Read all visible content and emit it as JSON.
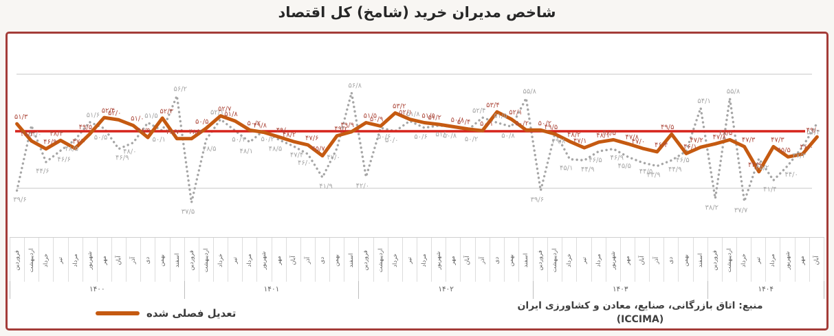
{
  "title": "شاخص مدیران خرید (شامخ) کل اقتصاد",
  "legend": {
    "label": "تعدیل فصلی شده"
  },
  "source": {
    "line1": "منبع: اتاق بازرگانی، صنایع، معادن و کشاورزی ایران",
    "line2": "(ICCIMA)"
  },
  "colors": {
    "frame_border": "#a43c38",
    "reference_line": "#d6231b",
    "adjusted_line": "#c55a11",
    "raw_line": "#a6a6a6",
    "adjusted_label": "#ad4a3d",
    "raw_label": "#a6a6a6",
    "gridline": "#d9d9d9"
  },
  "chart_data": {
    "type": "line",
    "title": "شاخص مدیران خرید (شامخ) کل اقتصاد",
    "reference_line": 50,
    "gridlines": [
      40,
      60
    ],
    "ylim": [
      34,
      62
    ],
    "legend_position": "bottom-left",
    "numeral_style": "persian",
    "month_names": [
      "فروردین",
      "اردیبهشت",
      "خرداد",
      "تیر",
      "مرداد",
      "شهریور",
      "مهر",
      "آبان",
      "آذر",
      "دی",
      "بهمن",
      "اسفند"
    ],
    "years": [
      {
        "label": "۱۴۰۰",
        "n_months": 12
      },
      {
        "label": "۱۴۰۱",
        "n_months": 12
      },
      {
        "label": "۱۴۰۲",
        "n_months": 12
      },
      {
        "label": "۱۴۰۳",
        "n_months": 12
      },
      {
        "label": "۱۴۰۴",
        "n_months": 8
      }
    ],
    "series": [
      {
        "id": "raw",
        "legend_label": "",
        "style": "dotted",
        "color": "#a6a6a6",
        "values": [
          39.6,
          51.0,
          44.6,
          46.6,
          48.5,
          51.6,
          50.5,
          46.9,
          48.0,
          51.5,
          50.1,
          56.2,
          37.5,
          48.5,
          52.1,
          50.1,
          48.1,
          50.2,
          48.5,
          47.4,
          46.0,
          41.9,
          47.0,
          56.8,
          42.0,
          50.6,
          50.0,
          51.8,
          50.6,
          51.0,
          50.8,
          50.2,
          52.4,
          51.5,
          50.8,
          55.8,
          39.6,
          49.8,
          45.1,
          44.9,
          46.5,
          46.9,
          45.5,
          44.5,
          43.9,
          44.9,
          46.5,
          54.1,
          38.2,
          55.8,
          37.7,
          45.2,
          41.4,
          44.0,
          47.3,
          51.4
        ]
      },
      {
        "id": "seasonally_adjusted",
        "legend_label": "تعدیل فصلی شده",
        "style": "solid",
        "color": "#c55a11",
        "values": [
          51.3,
          48.3,
          46.9,
          48.4,
          47.0,
          49.5,
          52.4,
          52.0,
          51.0,
          48.9,
          52.3,
          48.7,
          48.7,
          50.5,
          52.7,
          51.8,
          50.2,
          49.8,
          49.0,
          48.2,
          47.6,
          45.7,
          49.2,
          49.9,
          51.5,
          50.9,
          53.2,
          52.1,
          51.5,
          51.2,
          50.8,
          50.4,
          50.1,
          53.4,
          52.1,
          50.2,
          50.2,
          49.5,
          48.2,
          47.1,
          48.1,
          48.5,
          47.8,
          47.0,
          46.4,
          49.5,
          46.1,
          47.2,
          47.8,
          48.5,
          47.3,
          42.9,
          47.3,
          45.5,
          46.0,
          49.0
        ]
      }
    ]
  }
}
